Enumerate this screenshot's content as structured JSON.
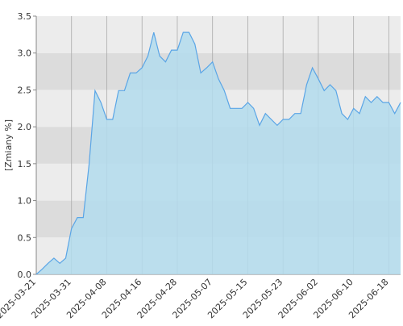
{
  "chart_data": {
    "type": "area",
    "y_label": "[Zmiany %]",
    "categories": [
      "2025-03-21",
      null,
      null,
      null,
      null,
      null,
      "2025-03-31",
      null,
      null,
      null,
      null,
      null,
      "2025-04-08",
      null,
      null,
      null,
      null,
      null,
      "2025-04-16",
      null,
      null,
      null,
      null,
      null,
      "2025-04-28",
      null,
      null,
      null,
      null,
      null,
      "2025-05-07",
      null,
      null,
      null,
      null,
      null,
      "2025-05-15",
      null,
      null,
      null,
      null,
      null,
      "2025-05-23",
      null,
      null,
      null,
      null,
      null,
      "2025-06-02",
      null,
      null,
      null,
      null,
      null,
      "2025-06-10",
      null,
      null,
      null,
      null,
      null,
      "2025-06-18",
      null,
      null
    ],
    "series": [
      {
        "color": "#5aa5e6",
        "values": [
          0.0,
          0.07,
          0.15,
          0.22,
          0.15,
          0.22,
          0.62,
          0.77,
          0.77,
          1.5,
          2.49,
          2.33,
          2.1,
          2.1,
          2.49,
          2.49,
          2.73,
          2.73,
          2.8,
          2.96,
          3.28,
          2.96,
          2.88,
          3.04,
          3.04,
          3.28,
          3.28,
          3.12,
          2.73,
          2.8,
          2.88,
          2.65,
          2.49,
          2.25,
          2.25,
          2.25,
          2.33,
          2.25,
          2.02,
          2.18,
          2.1,
          2.02,
          2.1,
          2.1,
          2.18,
          2.18,
          2.57,
          2.8,
          2.65,
          2.49,
          2.57,
          2.49,
          2.18,
          2.1,
          2.25,
          2.18,
          2.41,
          2.33,
          2.41,
          2.33,
          2.33,
          2.18,
          2.33
        ]
      }
    ],
    "ylim": [
      0,
      3.5
    ],
    "yticks": [
      {
        "value": 0,
        "label": "0.0"
      },
      0.5,
      {
        "value": 1,
        "label": "1.0"
      },
      1.5,
      {
        "value": 2,
        "label": "2.0"
      },
      2.5,
      {
        "value": 3,
        "label": "3.0"
      },
      3.5
    ],
    "band_colors": [
      "#ececec",
      "#dcdcdc"
    ],
    "fill_color": "#b3dced",
    "grid": true
  }
}
